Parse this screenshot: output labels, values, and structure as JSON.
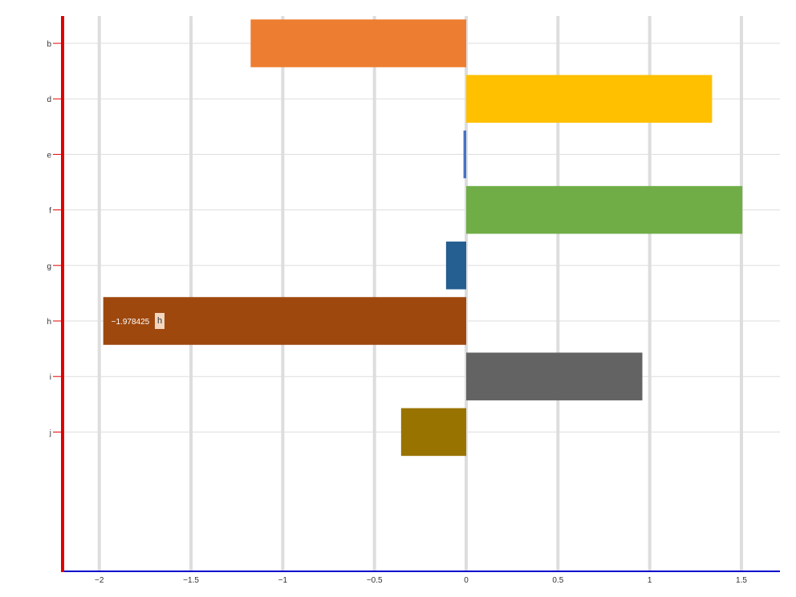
{
  "chart_data": {
    "type": "bar",
    "orientation": "horizontal",
    "categories": [
      "b",
      "d",
      "e",
      "f",
      "g",
      "h",
      "i",
      "j"
    ],
    "values": [
      -1.175,
      1.34,
      -0.015,
      1.505,
      -0.11,
      -1.978425,
      0.96,
      -0.355
    ],
    "colors": [
      "#ed7d31",
      "#ffc000",
      "#4472c4",
      "#70ad47",
      "#255e91",
      "#9e480e",
      "#636363",
      "#997300"
    ],
    "xlim": [
      -2.2,
      1.71
    ],
    "xticks": [
      -2,
      -1.5,
      -1,
      -0.5,
      0,
      0.5,
      1,
      1.5
    ],
    "xtick_labels": [
      "−2",
      "−1.5",
      "−1",
      "−0.5",
      "0",
      "0.5",
      "1",
      "1.5"
    ],
    "grid": true,
    "title": "",
    "xlabel": "",
    "ylabel": "",
    "data_label": {
      "category": "h",
      "value_text": "−1.978425",
      "tooltip": "h"
    },
    "axis_colors": {
      "y_axis": "#e00000",
      "x_axis": "#0000cc",
      "grid": "#dddddd"
    }
  }
}
